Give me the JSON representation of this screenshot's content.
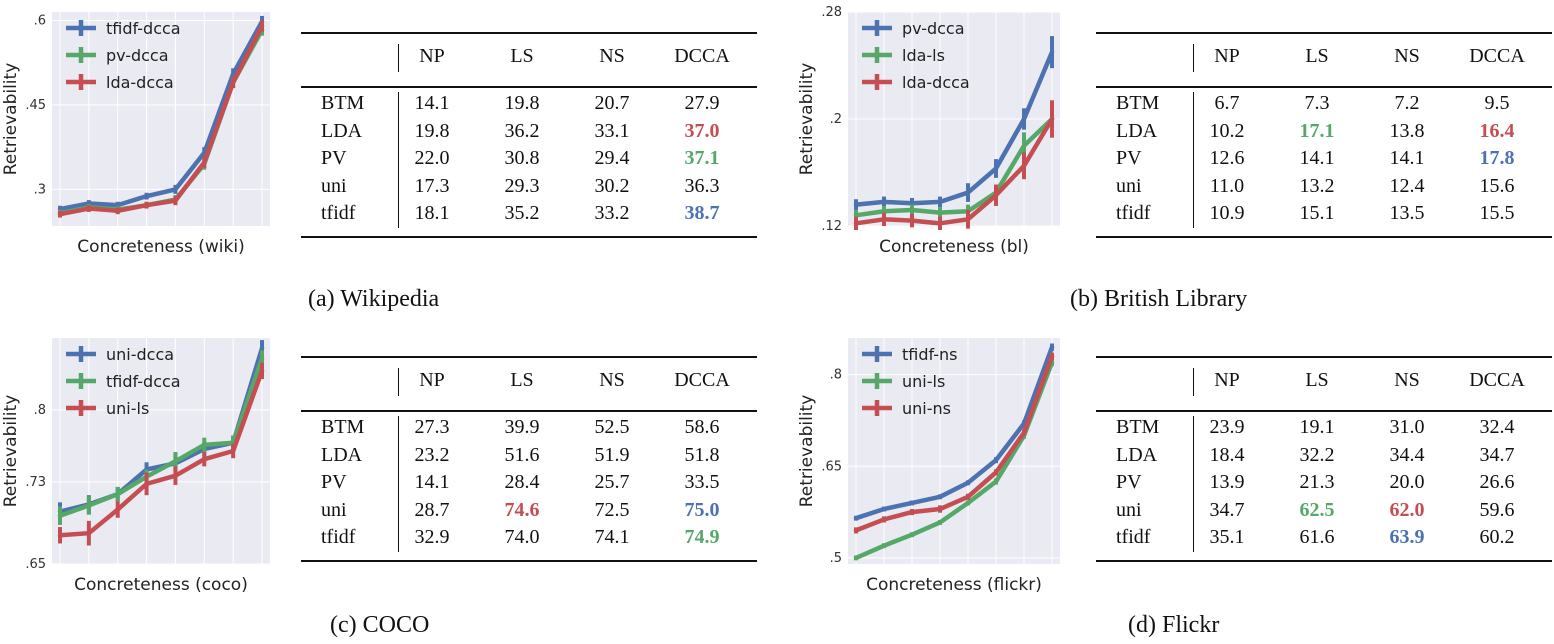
{
  "colors": {
    "blue": "#4c72b0",
    "green": "#55a868",
    "red": "#c44e52",
    "panel_bg": "#eaeaf2",
    "grid": "#ffffff"
  },
  "captions": {
    "a": "(a) Wikipedia",
    "b": "(b) British Library",
    "c": "(c) COCO",
    "d": "(d) Flickr"
  },
  "chart_data": [
    {
      "type": "line",
      "xlabel": "Concreteness (wiki)",
      "ylabel": "Retrievability",
      "ylim": [
        0.235,
        0.615
      ],
      "yticks": [
        0.3,
        0.45,
        0.6
      ],
      "ytick_labels": [
        ".3",
        ".45",
        ".6"
      ],
      "legend_position": "top-left",
      "series": [
        {
          "name": "tfidf-dcca",
          "color": "blue",
          "values": [
            0.265,
            0.275,
            0.272,
            0.288,
            0.3,
            0.365,
            0.505,
            0.598
          ],
          "err": [
            0.006,
            0.006,
            0.006,
            0.006,
            0.008,
            0.01,
            0.01,
            0.01
          ]
        },
        {
          "name": "pv-dcca",
          "color": "green",
          "values": [
            0.258,
            0.268,
            0.264,
            0.272,
            0.282,
            0.345,
            0.49,
            0.583
          ],
          "err": [
            0.006,
            0.006,
            0.006,
            0.006,
            0.008,
            0.01,
            0.01,
            0.01
          ]
        },
        {
          "name": "lda-dcca",
          "color": "red",
          "values": [
            0.256,
            0.266,
            0.262,
            0.272,
            0.28,
            0.348,
            0.49,
            0.59
          ],
          "err": [
            0.006,
            0.006,
            0.006,
            0.006,
            0.008,
            0.01,
            0.01,
            0.01
          ]
        }
      ]
    },
    {
      "type": "line",
      "xlabel": "Concreteness (bl)",
      "ylabel": "Retrievability",
      "ylim": [
        0.12,
        0.28
      ],
      "yticks": [
        0.12,
        0.2,
        0.28
      ],
      "ytick_labels": [
        ".12",
        ".2",
        ".28"
      ],
      "legend_position": "top-left",
      "series": [
        {
          "name": "pv-dcca",
          "color": "blue",
          "values": [
            0.136,
            0.138,
            0.137,
            0.138,
            0.145,
            0.163,
            0.2,
            0.25
          ],
          "err": [
            0.004,
            0.004,
            0.004,
            0.004,
            0.007,
            0.007,
            0.008,
            0.012
          ]
        },
        {
          "name": "lda-ls",
          "color": "green",
          "values": [
            0.128,
            0.131,
            0.132,
            0.13,
            0.131,
            0.145,
            0.18,
            0.2
          ],
          "err": [
            0.004,
            0.004,
            0.004,
            0.004,
            0.005,
            0.006,
            0.01,
            0.012
          ]
        },
        {
          "name": "lda-dcca",
          "color": "red",
          "values": [
            0.122,
            0.125,
            0.124,
            0.122,
            0.125,
            0.143,
            0.165,
            0.2
          ],
          "err": [
            0.005,
            0.005,
            0.005,
            0.005,
            0.007,
            0.008,
            0.01,
            0.014
          ]
        }
      ]
    },
    {
      "type": "line",
      "xlabel": "Concreteness (coco)",
      "ylabel": "Retrievability",
      "ylim": [
        0.65,
        0.87
      ],
      "yticks": [
        0.65,
        0.73,
        0.8
      ],
      "ytick_labels": [
        ".65",
        ".73",
        ".8"
      ],
      "legend_position": "top-left",
      "series": [
        {
          "name": "uni-dcca",
          "color": "blue",
          "values": [
            0.701,
            0.708,
            0.718,
            0.742,
            0.748,
            0.762,
            0.768,
            0.86
          ],
          "err": [
            0.009,
            0.009,
            0.007,
            0.007,
            0.009,
            0.007,
            0.007,
            0.008
          ]
        },
        {
          "name": "tfidf-dcca",
          "color": "green",
          "values": [
            0.697,
            0.707,
            0.718,
            0.735,
            0.75,
            0.766,
            0.768,
            0.85
          ],
          "err": [
            0.009,
            0.009,
            0.007,
            0.007,
            0.009,
            0.007,
            0.007,
            0.008
          ]
        },
        {
          "name": "uni-ls",
          "color": "red",
          "values": [
            0.678,
            0.68,
            0.703,
            0.728,
            0.736,
            0.752,
            0.76,
            0.838
          ],
          "err": [
            0.008,
            0.012,
            0.008,
            0.011,
            0.009,
            0.007,
            0.007,
            0.008
          ]
        }
      ]
    },
    {
      "type": "line",
      "xlabel": "Concreteness (flickr)",
      "ylabel": "Retrievability",
      "ylim": [
        0.49,
        0.86
      ],
      "yticks": [
        0.5,
        0.65,
        0.8
      ],
      "ytick_labels": [
        ".5",
        ".65",
        ".8"
      ],
      "legend_position": "top-left",
      "series": [
        {
          "name": "tfidf-ns",
          "color": "blue",
          "values": [
            0.565,
            0.58,
            0.59,
            0.6,
            0.623,
            0.66,
            0.72,
            0.845
          ],
          "err": [
            0.004,
            0.004,
            0.004,
            0.004,
            0.004,
            0.005,
            0.005,
            0.006
          ]
        },
        {
          "name": "uni-ls",
          "color": "green",
          "values": [
            0.5,
            0.52,
            0.538,
            0.558,
            0.59,
            0.625,
            0.7,
            0.82
          ],
          "err": [
            0.004,
            0.004,
            0.004,
            0.004,
            0.004,
            0.005,
            0.005,
            0.006
          ]
        },
        {
          "name": "uni-ns",
          "color": "red",
          "values": [
            0.545,
            0.563,
            0.575,
            0.58,
            0.6,
            0.64,
            0.705,
            0.83
          ],
          "err": [
            0.005,
            0.005,
            0.005,
            0.006,
            0.005,
            0.005,
            0.005,
            0.006
          ]
        }
      ]
    }
  ],
  "tables": [
    {
      "headers": [
        "NP",
        "LS",
        "NS",
        "DCCA"
      ],
      "rows": [
        {
          "label": "BTM",
          "cells": [
            {
              "v": "14.1",
              "hl": ""
            },
            {
              "v": "19.8",
              "hl": ""
            },
            {
              "v": "20.7",
              "hl": ""
            },
            {
              "v": "27.9",
              "hl": ""
            }
          ]
        },
        {
          "label": "LDA",
          "cells": [
            {
              "v": "19.8",
              "hl": ""
            },
            {
              "v": "36.2",
              "hl": ""
            },
            {
              "v": "33.1",
              "hl": ""
            },
            {
              "v": "37.0",
              "hl": "red"
            }
          ]
        },
        {
          "label": "PV",
          "cells": [
            {
              "v": "22.0",
              "hl": ""
            },
            {
              "v": "30.8",
              "hl": ""
            },
            {
              "v": "29.4",
              "hl": ""
            },
            {
              "v": "37.1",
              "hl": "green"
            }
          ]
        },
        {
          "label": "uni",
          "cells": [
            {
              "v": "17.3",
              "hl": ""
            },
            {
              "v": "29.3",
              "hl": ""
            },
            {
              "v": "30.2",
              "hl": ""
            },
            {
              "v": "36.3",
              "hl": ""
            }
          ]
        },
        {
          "label": "tfidf",
          "cells": [
            {
              "v": "18.1",
              "hl": ""
            },
            {
              "v": "35.2",
              "hl": ""
            },
            {
              "v": "33.2",
              "hl": ""
            },
            {
              "v": "38.7",
              "hl": "blue"
            }
          ]
        }
      ]
    },
    {
      "headers": [
        "NP",
        "LS",
        "NS",
        "DCCA"
      ],
      "rows": [
        {
          "label": "BTM",
          "cells": [
            {
              "v": "6.7",
              "hl": ""
            },
            {
              "v": "7.3",
              "hl": ""
            },
            {
              "v": "7.2",
              "hl": ""
            },
            {
              "v": "9.5",
              "hl": ""
            }
          ]
        },
        {
          "label": "LDA",
          "cells": [
            {
              "v": "10.2",
              "hl": ""
            },
            {
              "v": "17.1",
              "hl": "green"
            },
            {
              "v": "13.8",
              "hl": ""
            },
            {
              "v": "16.4",
              "hl": "red"
            }
          ]
        },
        {
          "label": "PV",
          "cells": [
            {
              "v": "12.6",
              "hl": ""
            },
            {
              "v": "14.1",
              "hl": ""
            },
            {
              "v": "14.1",
              "hl": ""
            },
            {
              "v": "17.8",
              "hl": "blue"
            }
          ]
        },
        {
          "label": "uni",
          "cells": [
            {
              "v": "11.0",
              "hl": ""
            },
            {
              "v": "13.2",
              "hl": ""
            },
            {
              "v": "12.4",
              "hl": ""
            },
            {
              "v": "15.6",
              "hl": ""
            }
          ]
        },
        {
          "label": "tfidf",
          "cells": [
            {
              "v": "10.9",
              "hl": ""
            },
            {
              "v": "15.1",
              "hl": ""
            },
            {
              "v": "13.5",
              "hl": ""
            },
            {
              "v": "15.5",
              "hl": ""
            }
          ]
        }
      ]
    },
    {
      "headers": [
        "NP",
        "LS",
        "NS",
        "DCCA"
      ],
      "rows": [
        {
          "label": "BTM",
          "cells": [
            {
              "v": "27.3",
              "hl": ""
            },
            {
              "v": "39.9",
              "hl": ""
            },
            {
              "v": "52.5",
              "hl": ""
            },
            {
              "v": "58.6",
              "hl": ""
            }
          ]
        },
        {
          "label": "LDA",
          "cells": [
            {
              "v": "23.2",
              "hl": ""
            },
            {
              "v": "51.6",
              "hl": ""
            },
            {
              "v": "51.9",
              "hl": ""
            },
            {
              "v": "51.8",
              "hl": ""
            }
          ]
        },
        {
          "label": "PV",
          "cells": [
            {
              "v": "14.1",
              "hl": ""
            },
            {
              "v": "28.4",
              "hl": ""
            },
            {
              "v": "25.7",
              "hl": ""
            },
            {
              "v": "33.5",
              "hl": ""
            }
          ]
        },
        {
          "label": "uni",
          "cells": [
            {
              "v": "28.7",
              "hl": ""
            },
            {
              "v": "74.6",
              "hl": "red"
            },
            {
              "v": "72.5",
              "hl": ""
            },
            {
              "v": "75.0",
              "hl": "blue"
            }
          ]
        },
        {
          "label": "tfidf",
          "cells": [
            {
              "v": "32.9",
              "hl": ""
            },
            {
              "v": "74.0",
              "hl": ""
            },
            {
              "v": "74.1",
              "hl": ""
            },
            {
              "v": "74.9",
              "hl": "green"
            }
          ]
        }
      ]
    },
    {
      "headers": [
        "NP",
        "LS",
        "NS",
        "DCCA"
      ],
      "rows": [
        {
          "label": "BTM",
          "cells": [
            {
              "v": "23.9",
              "hl": ""
            },
            {
              "v": "19.1",
              "hl": ""
            },
            {
              "v": "31.0",
              "hl": ""
            },
            {
              "v": "32.4",
              "hl": ""
            }
          ]
        },
        {
          "label": "LDA",
          "cells": [
            {
              "v": "18.4",
              "hl": ""
            },
            {
              "v": "32.2",
              "hl": ""
            },
            {
              "v": "34.4",
              "hl": ""
            },
            {
              "v": "34.7",
              "hl": ""
            }
          ]
        },
        {
          "label": "PV",
          "cells": [
            {
              "v": "13.9",
              "hl": ""
            },
            {
              "v": "21.3",
              "hl": ""
            },
            {
              "v": "20.0",
              "hl": ""
            },
            {
              "v": "26.6",
              "hl": ""
            }
          ]
        },
        {
          "label": "uni",
          "cells": [
            {
              "v": "34.7",
              "hl": ""
            },
            {
              "v": "62.5",
              "hl": "green"
            },
            {
              "v": "62.0",
              "hl": "red"
            },
            {
              "v": "59.6",
              "hl": ""
            }
          ]
        },
        {
          "label": "tfidf",
          "cells": [
            {
              "v": "35.1",
              "hl": ""
            },
            {
              "v": "61.6",
              "hl": ""
            },
            {
              "v": "63.9",
              "hl": "blue"
            },
            {
              "v": "60.2",
              "hl": ""
            }
          ]
        }
      ]
    }
  ]
}
